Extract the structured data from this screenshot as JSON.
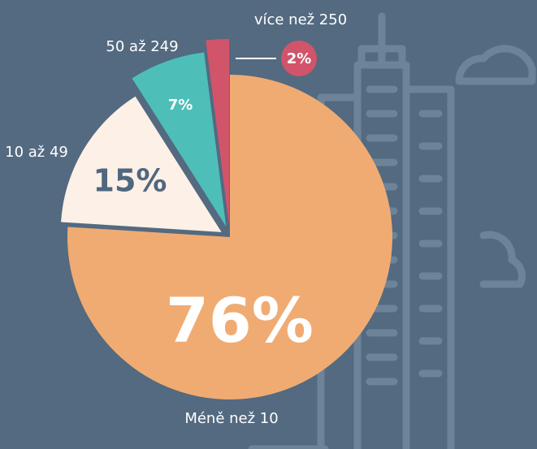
{
  "chart_data": {
    "type": "pie",
    "categories": [
      "Méně než 10",
      "10 až 49",
      "50 až 249",
      "více než 250"
    ],
    "values": [
      76,
      15,
      7,
      2
    ],
    "value_labels": [
      "76%",
      "15%",
      "7%",
      "2%"
    ],
    "colors": [
      "#f0ab72",
      "#fdf0e6",
      "#4dbfb8",
      "#d2546a"
    ]
  }
}
